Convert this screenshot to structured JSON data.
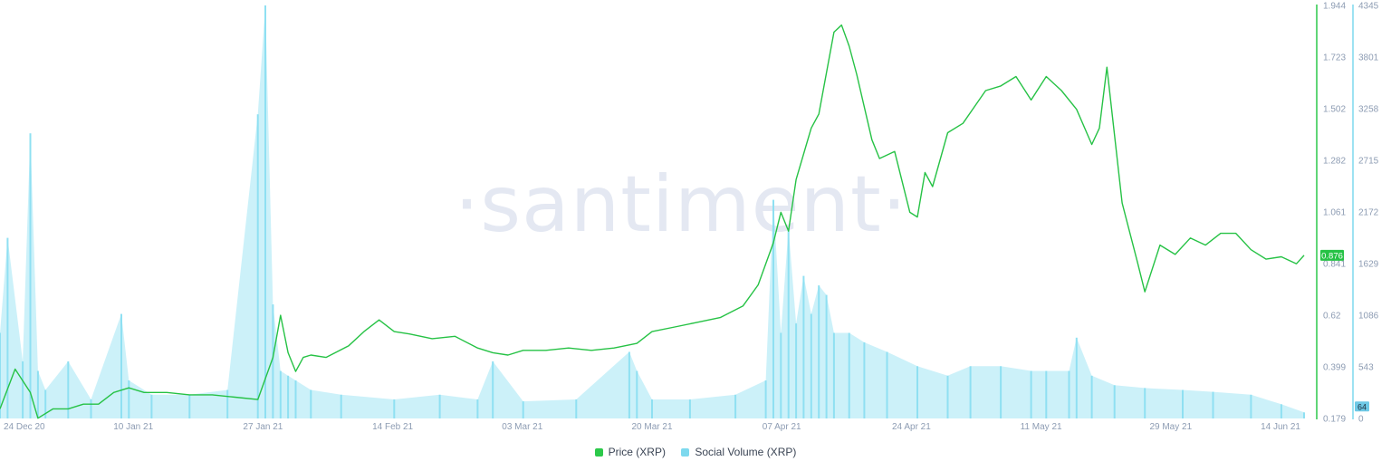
{
  "watermark": "·santiment·",
  "legend": [
    {
      "label": "Price (XRP)",
      "color": "#2cc94a"
    },
    {
      "label": "Social Volume (XRP)",
      "color": "#7dd9ee"
    }
  ],
  "colors": {
    "price": "#26c245",
    "volume": "#8fe0f2",
    "axis_text": "#8d9cb3",
    "volume_axis": "#6fc9e6"
  },
  "chart_data": {
    "type": "line",
    "x_ticks": [
      "24 Dec 20",
      "10 Jan 21",
      "27 Jan 21",
      "14 Feb 21",
      "03 Mar 21",
      "20 Mar 21",
      "07 Apr 21",
      "24 Apr 21",
      "11 May 21",
      "29 May 21",
      "14 Jun 21"
    ],
    "y_left_ticks": [
      "1.944",
      "1.723",
      "1.502",
      "1.282",
      "1.061",
      "0.841",
      "0.62",
      "0.399",
      "0.179"
    ],
    "y_right_ticks": [
      "4345",
      "3801",
      "3258",
      "2715",
      "2172",
      "1629",
      "1086",
      "543",
      "0"
    ],
    "y_left_range": [
      0.179,
      1.944
    ],
    "y_right_range": [
      0,
      4345
    ],
    "x_range": [
      "2020-12-24",
      "2021-06-14"
    ],
    "price_current_label": "0.876",
    "volume_current_label": "64",
    "series": [
      {
        "name": "Price (XRP)",
        "axis": "left",
        "x": [
          "2020-12-24",
          "2020-12-26",
          "2020-12-28",
          "2020-12-29",
          "2020-12-31",
          "2021-01-02",
          "2021-01-04",
          "2021-01-06",
          "2021-01-08",
          "2021-01-10",
          "2021-01-12",
          "2021-01-15",
          "2021-01-18",
          "2021-01-21",
          "2021-01-24",
          "2021-01-27",
          "2021-01-29",
          "2021-01-30",
          "2021-01-31",
          "2021-02-01",
          "2021-02-02",
          "2021-02-03",
          "2021-02-05",
          "2021-02-08",
          "2021-02-10",
          "2021-02-12",
          "2021-02-14",
          "2021-02-16",
          "2021-02-19",
          "2021-02-22",
          "2021-02-25",
          "2021-02-27",
          "2021-03-01",
          "2021-03-03",
          "2021-03-06",
          "2021-03-09",
          "2021-03-12",
          "2021-03-15",
          "2021-03-18",
          "2021-03-20",
          "2021-03-23",
          "2021-03-26",
          "2021-03-29",
          "2021-04-01",
          "2021-04-03",
          "2021-04-05",
          "2021-04-06",
          "2021-04-07",
          "2021-04-08",
          "2021-04-10",
          "2021-04-11",
          "2021-04-13",
          "2021-04-14",
          "2021-04-15",
          "2021-04-16",
          "2021-04-18",
          "2021-04-19",
          "2021-04-21",
          "2021-04-23",
          "2021-04-24",
          "2021-04-25",
          "2021-04-26",
          "2021-04-28",
          "2021-04-30",
          "2021-05-03",
          "2021-05-05",
          "2021-05-07",
          "2021-05-09",
          "2021-05-11",
          "2021-05-13",
          "2021-05-15",
          "2021-05-17",
          "2021-05-18",
          "2021-05-19",
          "2021-05-21",
          "2021-05-23",
          "2021-05-24",
          "2021-05-26",
          "2021-05-28",
          "2021-05-30",
          "2021-06-01",
          "2021-06-03",
          "2021-06-05",
          "2021-06-07",
          "2021-06-09",
          "2021-06-11",
          "2021-06-13",
          "2021-06-14"
        ],
        "y": [
          0.22,
          0.39,
          0.29,
          0.18,
          0.22,
          0.22,
          0.24,
          0.24,
          0.29,
          0.31,
          0.29,
          0.29,
          0.28,
          0.28,
          0.27,
          0.26,
          0.44,
          0.62,
          0.46,
          0.38,
          0.44,
          0.45,
          0.44,
          0.49,
          0.55,
          0.6,
          0.55,
          0.54,
          0.52,
          0.53,
          0.48,
          0.46,
          0.45,
          0.47,
          0.47,
          0.48,
          0.47,
          0.48,
          0.5,
          0.55,
          0.57,
          0.59,
          0.61,
          0.66,
          0.75,
          0.93,
          1.06,
          0.98,
          1.2,
          1.42,
          1.48,
          1.83,
          1.86,
          1.77,
          1.65,
          1.37,
          1.29,
          1.32,
          1.06,
          1.04,
          1.23,
          1.17,
          1.4,
          1.44,
          1.58,
          1.6,
          1.64,
          1.54,
          1.64,
          1.58,
          1.5,
          1.35,
          1.42,
          1.68,
          1.1,
          0.85,
          0.72,
          0.92,
          0.88,
          0.95,
          0.92,
          0.97,
          0.97,
          0.9,
          0.86,
          0.87,
          0.84,
          0.876
        ]
      },
      {
        "name": "Social Volume (XRP)",
        "axis": "right",
        "x": [
          "2020-12-24",
          "2020-12-25",
          "2020-12-27",
          "2020-12-28",
          "2020-12-29",
          "2020-12-30",
          "2021-01-02",
          "2021-01-05",
          "2021-01-09",
          "2021-01-10",
          "2021-01-13",
          "2021-01-18",
          "2021-01-23",
          "2021-01-27",
          "2021-01-28",
          "2021-01-29",
          "2021-01-30",
          "2021-01-31",
          "2021-02-01",
          "2021-02-03",
          "2021-02-07",
          "2021-02-14",
          "2021-02-20",
          "2021-02-25",
          "2021-02-27",
          "2021-03-03",
          "2021-03-10",
          "2021-03-17",
          "2021-03-18",
          "2021-03-20",
          "2021-03-25",
          "2021-03-31",
          "2021-04-04",
          "2021-04-05",
          "2021-04-06",
          "2021-04-07",
          "2021-04-08",
          "2021-04-09",
          "2021-04-10",
          "2021-04-11",
          "2021-04-12",
          "2021-04-13",
          "2021-04-15",
          "2021-04-17",
          "2021-04-20",
          "2021-04-24",
          "2021-04-28",
          "2021-05-01",
          "2021-05-05",
          "2021-05-09",
          "2021-05-11",
          "2021-05-14",
          "2021-05-15",
          "2021-05-17",
          "2021-05-20",
          "2021-05-24",
          "2021-05-29",
          "2021-06-02",
          "2021-06-07",
          "2021-06-11",
          "2021-06-14"
        ],
        "y": [
          900,
          1900,
          600,
          3000,
          500,
          300,
          600,
          200,
          1100,
          400,
          250,
          250,
          300,
          3200,
          4345,
          1200,
          500,
          450,
          400,
          300,
          250,
          200,
          250,
          200,
          600,
          180,
          200,
          700,
          500,
          200,
          200,
          250,
          400,
          2300,
          900,
          2000,
          1000,
          1500,
          1100,
          1400,
          1300,
          900,
          900,
          800,
          700,
          550,
          450,
          550,
          550,
          500,
          500,
          500,
          850,
          450,
          350,
          320,
          300,
          280,
          250,
          150,
          64
        ]
      }
    ]
  }
}
